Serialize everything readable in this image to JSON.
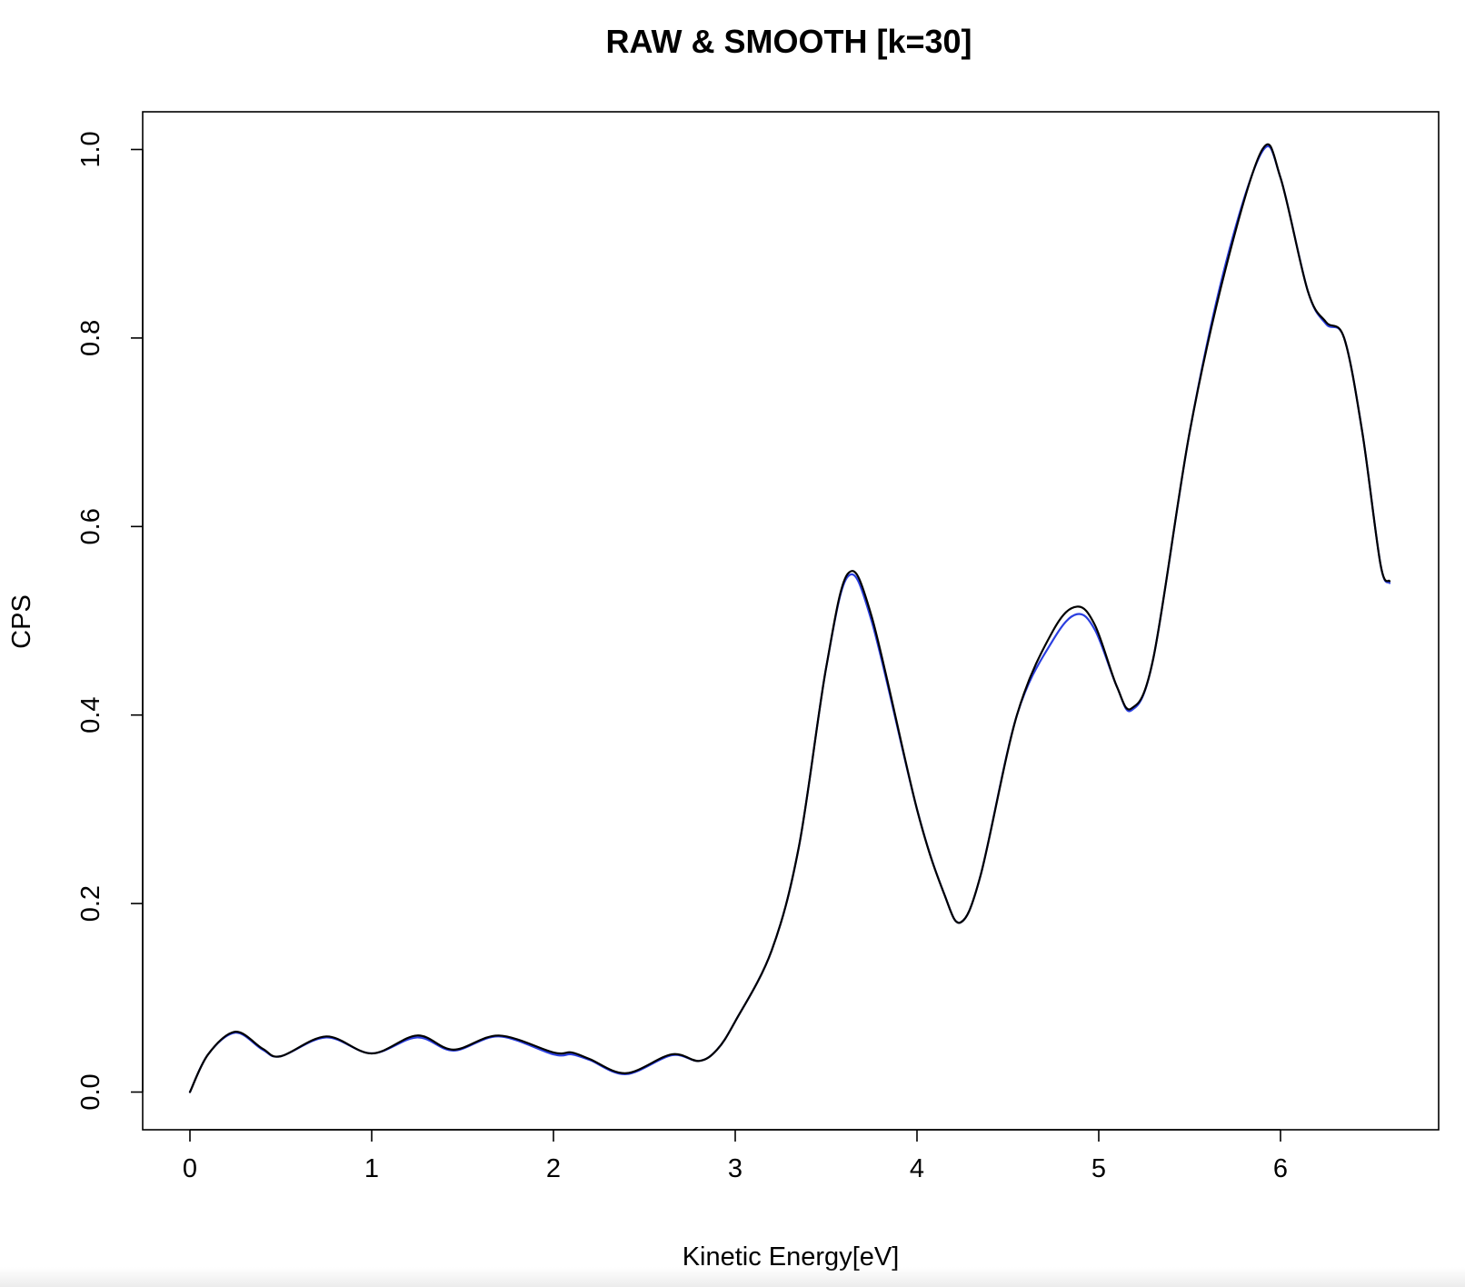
{
  "chart_data": {
    "type": "line",
    "title": "RAW & SMOOTH [k=30]",
    "xlabel": "Kinetic Energy[eV]",
    "ylabel": "CPS",
    "xlim": [
      -0.26,
      6.87
    ],
    "ylim": [
      -0.04,
      1.04
    ],
    "x_ticks": [
      "0",
      "1",
      "2",
      "3",
      "4",
      "5",
      "6"
    ],
    "y_ticks": [
      "0.0",
      "0.2",
      "0.4",
      "0.6",
      "0.8",
      "1.0"
    ],
    "grid": false,
    "series": [
      {
        "color": "#2b3fe0",
        "points": [
          [
            0,
            0
          ],
          [
            0.1,
            0.04
          ],
          [
            0.25,
            0.063
          ],
          [
            0.4,
            0.045
          ],
          [
            0.5,
            0.038
          ],
          [
            0.75,
            0.058
          ],
          [
            1.0,
            0.041
          ],
          [
            1.25,
            0.058
          ],
          [
            1.45,
            0.044
          ],
          [
            1.7,
            0.059
          ],
          [
            2.0,
            0.04
          ],
          [
            2.1,
            0.04
          ],
          [
            2.2,
            0.034
          ],
          [
            2.4,
            0.019
          ],
          [
            2.65,
            0.039
          ],
          [
            2.8,
            0.033
          ],
          [
            2.9,
            0.045
          ],
          [
            3.0,
            0.075
          ],
          [
            3.2,
            0.15
          ],
          [
            3.35,
            0.26
          ],
          [
            3.5,
            0.45
          ],
          [
            3.62,
            0.547
          ],
          [
            3.75,
            0.5
          ],
          [
            4.0,
            0.3
          ],
          [
            4.15,
            0.21
          ],
          [
            4.24,
            0.18
          ],
          [
            4.35,
            0.23
          ],
          [
            4.55,
            0.4
          ],
          [
            4.75,
            0.48
          ],
          [
            4.88,
            0.507
          ],
          [
            4.98,
            0.49
          ],
          [
            5.1,
            0.43
          ],
          [
            5.18,
            0.405
          ],
          [
            5.3,
            0.46
          ],
          [
            5.5,
            0.7
          ],
          [
            5.7,
            0.88
          ],
          [
            5.9,
            0.998
          ],
          [
            6.0,
            0.97
          ],
          [
            6.15,
            0.85
          ],
          [
            6.25,
            0.815
          ],
          [
            6.35,
            0.8
          ],
          [
            6.45,
            0.7
          ],
          [
            6.55,
            0.56
          ],
          [
            6.6,
            0.54
          ]
        ]
      },
      {
        "color": "#000000",
        "points": [
          [
            0,
            0
          ],
          [
            0.1,
            0.04
          ],
          [
            0.25,
            0.064
          ],
          [
            0.4,
            0.046
          ],
          [
            0.5,
            0.038
          ],
          [
            0.75,
            0.059
          ],
          [
            1.0,
            0.041
          ],
          [
            1.25,
            0.06
          ],
          [
            1.45,
            0.045
          ],
          [
            1.7,
            0.06
          ],
          [
            2.0,
            0.042
          ],
          [
            2.1,
            0.042
          ],
          [
            2.2,
            0.035
          ],
          [
            2.4,
            0.02
          ],
          [
            2.65,
            0.04
          ],
          [
            2.8,
            0.033
          ],
          [
            2.9,
            0.045
          ],
          [
            3.0,
            0.075
          ],
          [
            3.2,
            0.15
          ],
          [
            3.35,
            0.26
          ],
          [
            3.5,
            0.45
          ],
          [
            3.62,
            0.55
          ],
          [
            3.75,
            0.505
          ],
          [
            4.0,
            0.3
          ],
          [
            4.15,
            0.21
          ],
          [
            4.24,
            0.18
          ],
          [
            4.35,
            0.23
          ],
          [
            4.55,
            0.4
          ],
          [
            4.75,
            0.49
          ],
          [
            4.88,
            0.515
          ],
          [
            4.98,
            0.495
          ],
          [
            5.1,
            0.43
          ],
          [
            5.18,
            0.407
          ],
          [
            5.3,
            0.46
          ],
          [
            5.5,
            0.7
          ],
          [
            5.7,
            0.875
          ],
          [
            5.9,
            1.0
          ],
          [
            6.0,
            0.97
          ],
          [
            6.15,
            0.85
          ],
          [
            6.25,
            0.817
          ],
          [
            6.35,
            0.8
          ],
          [
            6.45,
            0.7
          ],
          [
            6.55,
            0.56
          ],
          [
            6.6,
            0.542
          ]
        ]
      }
    ]
  }
}
